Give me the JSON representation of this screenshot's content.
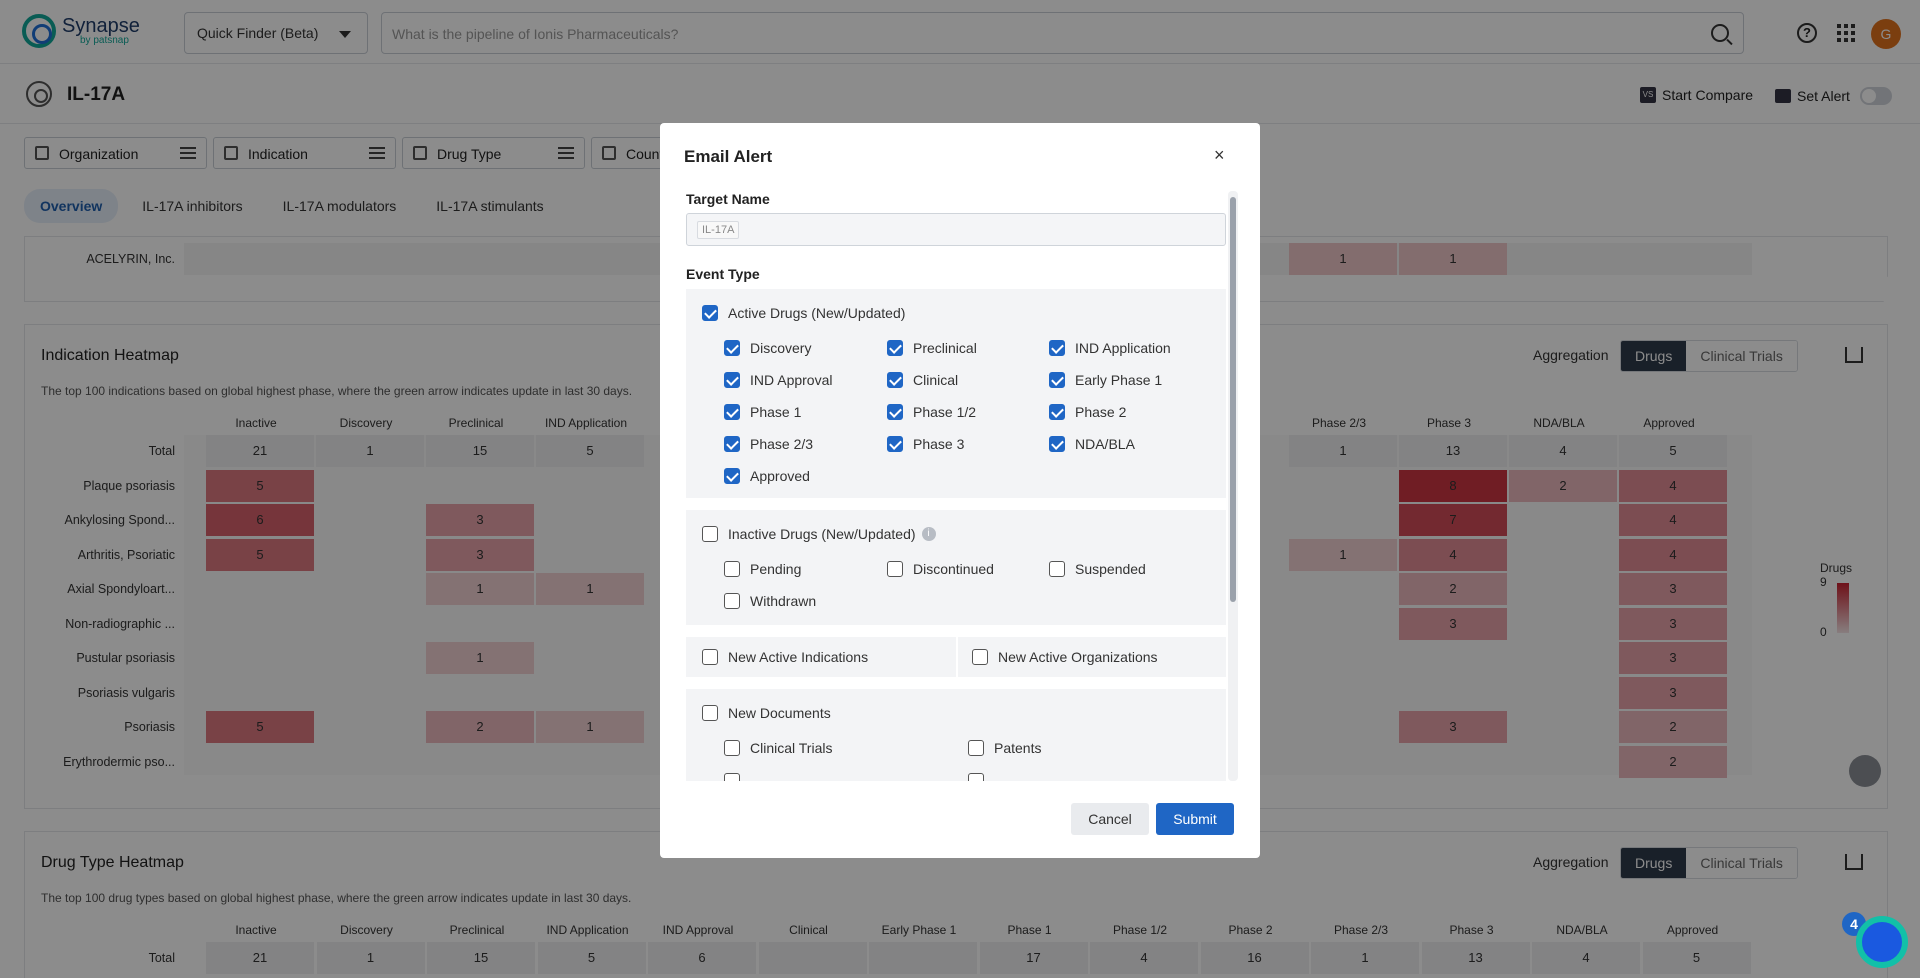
{
  "app": {
    "brand": "Synapse",
    "brand_sub": "by patsnap",
    "finder_label": "Quick Finder (Beta)",
    "search_placeholder": "What is the pipeline of Ionis Pharmaceuticals?",
    "avatar_letter": "G"
  },
  "page": {
    "title": "IL-17A",
    "start_compare": "Start Compare",
    "compare_badge": "VS",
    "set_alert": "Set Alert"
  },
  "filters": [
    "Organization",
    "Indication",
    "Drug Type",
    "Count"
  ],
  "tabs": [
    "Overview",
    "IL-17A inhibitors",
    "IL-17A modulators",
    "IL-17A stimulants"
  ],
  "acelyrin": {
    "label": "ACELYRIN, Inc.",
    "v1": "1",
    "v2": "1"
  },
  "indication_heatmap": {
    "title": "Indication Heatmap",
    "desc": "The top 100 indications based on global highest phase, where the green arrow indicates update in last 30 days.",
    "aggregation": "Aggregation",
    "seg_drugs": "Drugs",
    "seg_trials": "Clinical Trials",
    "left_cols": [
      "Inactive",
      "Discovery",
      "Preclinical",
      "IND Application",
      "IND"
    ],
    "right_cols": [
      "Phase 2/3",
      "Phase 3",
      "NDA/BLA",
      "Approved"
    ],
    "rows": [
      {
        "label": "Total",
        "left": [
          "21",
          "1",
          "15",
          "5"
        ],
        "right": [
          "1",
          "13",
          "4",
          "5"
        ]
      },
      {
        "label": "Plaque psoriasis",
        "left": [
          "5",
          "",
          "",
          ""
        ],
        "right": [
          "",
          "8",
          "2",
          "4"
        ]
      },
      {
        "label": "Ankylosing Spond...",
        "left": [
          "6",
          "",
          "3",
          ""
        ],
        "right": [
          "",
          "7",
          "",
          "4"
        ]
      },
      {
        "label": "Arthritis, Psoriatic",
        "left": [
          "5",
          "",
          "3",
          ""
        ],
        "right": [
          "1",
          "4",
          "",
          "4"
        ]
      },
      {
        "label": "Axial Spondyloart...",
        "left": [
          "",
          "",
          "1",
          "1"
        ],
        "right": [
          "",
          "2",
          "",
          "3"
        ]
      },
      {
        "label": "Non-radiographic ...",
        "left": [
          "",
          "",
          "",
          ""
        ],
        "right": [
          "",
          "3",
          "",
          "3"
        ]
      },
      {
        "label": "Pustular psoriasis",
        "left": [
          "",
          "",
          "1",
          ""
        ],
        "right": [
          "",
          "",
          "",
          "3"
        ]
      },
      {
        "label": "Psoriasis vulgaris",
        "left": [
          "",
          "",
          "",
          ""
        ],
        "right": [
          "",
          "",
          "",
          "3"
        ]
      },
      {
        "label": "Psoriasis",
        "left": [
          "5",
          "",
          "2",
          "1"
        ],
        "right": [
          "",
          "3",
          "",
          "2"
        ]
      },
      {
        "label": "Erythrodermic pso...",
        "left": [
          "",
          "",
          "",
          ""
        ],
        "right": [
          "",
          "",
          "",
          "2"
        ]
      }
    ],
    "legend": {
      "title": "Drugs",
      "max": "9",
      "min": "0"
    }
  },
  "drugtype_heatmap": {
    "title": "Drug Type Heatmap",
    "desc": "The top 100 drug types based on global highest phase, where the green arrow indicates update in last 30 days.",
    "aggregation": "Aggregation",
    "seg_drugs": "Drugs",
    "seg_trials": "Clinical Trials",
    "cols": [
      "Inactive",
      "Discovery",
      "Preclinical",
      "IND Application",
      "IND Approval",
      "Clinical",
      "Early Phase 1",
      "Phase 1",
      "Phase 1/2",
      "Phase 2",
      "Phase 2/3",
      "Phase 3",
      "NDA/BLA",
      "Approved"
    ],
    "total_label": "Total",
    "total": [
      "21",
      "1",
      "15",
      "5",
      "6",
      "",
      "",
      "17",
      "4",
      "16",
      "1",
      "13",
      "4",
      "5"
    ]
  },
  "modal": {
    "title": "Email Alert",
    "close": "×",
    "target_name_label": "Target Name",
    "target_name_value": "IL-17A",
    "event_type_label": "Event Type",
    "active": {
      "label": "Active Drugs (New/Updated)",
      "checked": true,
      "items": [
        "Discovery",
        "Preclinical",
        "IND Application",
        "IND Approval",
        "Clinical",
        "Early Phase 1",
        "Phase 1",
        "Phase 1/2",
        "Phase 2",
        "Phase 2/3",
        "Phase 3",
        "NDA/BLA",
        "Approved"
      ]
    },
    "inactive": {
      "label": "Inactive Drugs (New/Updated)",
      "info": "i",
      "checked": false,
      "items": [
        "Pending",
        "Discontinued",
        "Suspended",
        "Withdrawn"
      ]
    },
    "new_indications": "New Active Indications",
    "new_orgs": "New Active Organizations",
    "new_docs": {
      "label": "New Documents",
      "items": [
        "Clinical Trials",
        "Patents"
      ]
    },
    "cancel": "Cancel",
    "submit": "Submit"
  },
  "assistant_badge": "4"
}
